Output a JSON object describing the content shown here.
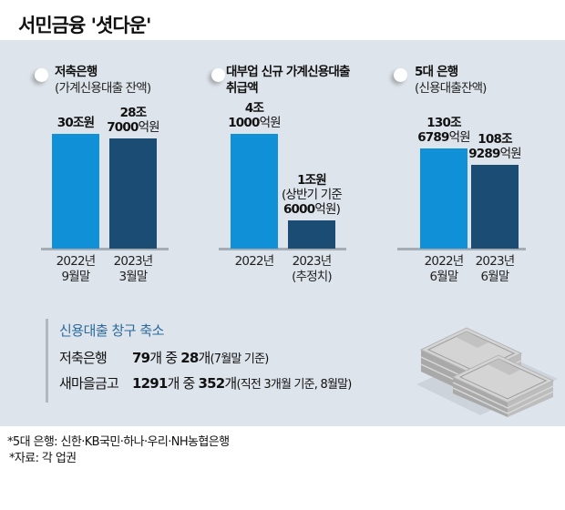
{
  "header": {
    "title": "서민금융 '셧다운'"
  },
  "colors": {
    "bar_2022": "#1090d6",
    "bar_2023": "#1a4c74",
    "panel": "#dee4eb",
    "box_title": "#2a6a9e"
  },
  "chart_data": [
    {
      "type": "bar",
      "title": "저축은행",
      "subtitle": "(가계신용대출 잔액)",
      "categories": [
        "2022년 9월말",
        "2023년 3월말"
      ],
      "category_lines": [
        [
          "2022년",
          "9월말"
        ],
        [
          "2023년",
          "3월말"
        ]
      ],
      "values": [
        300000,
        287000
      ],
      "unit": "억원",
      "data_labels": [
        [
          "30조원"
        ],
        [
          "28조",
          "7000억원"
        ]
      ]
    },
    {
      "type": "bar",
      "title": "대부업 신규 가계신용대출 취급액",
      "title_lines": [
        "대부업 신규 가계신용대출",
        "취급액"
      ],
      "subtitle": "",
      "categories": [
        "2022년",
        "2023년 (추정치)"
      ],
      "category_lines": [
        [
          "2022년"
        ],
        [
          "2023년",
          "(추정치)"
        ]
      ],
      "values": [
        41000,
        10000
      ],
      "unit": "억원",
      "data_labels": [
        [
          "4조",
          "1000억원"
        ],
        [
          "1조원",
          "(상반기 기준",
          "6000억원)"
        ]
      ]
    },
    {
      "type": "bar",
      "title": "5대 은행",
      "subtitle": "(신용대출잔액)",
      "categories": [
        "2022년 6월말",
        "2023년 6월말"
      ],
      "category_lines": [
        [
          "2022년",
          "6월말"
        ],
        [
          "2023년",
          "6월말"
        ]
      ],
      "values": [
        1306789,
        1089289
      ],
      "unit": "억원",
      "data_labels": [
        [
          "130조",
          "6789억원"
        ],
        [
          "108조",
          "9289억원"
        ]
      ]
    }
  ],
  "box": {
    "title": "신용대출 창구 축소",
    "rows": [
      {
        "name": "저축은행",
        "total": "79",
        "total_unit": "개 중 ",
        "count": "28",
        "count_unit": "개",
        "note": "(7월말 기준)"
      },
      {
        "name": "새마을금고",
        "total": "1291",
        "total_unit": "개 중 ",
        "count": "352",
        "count_unit": "개",
        "note": "(직전 3개월 기준, 8월말)"
      }
    ]
  },
  "illustration": {
    "icon": "money-stack-icon"
  },
  "footnotes": [
    "*5대 은행: 신한·KB국민·하나·우리·NH농협은행",
    "*자료: 각 업권"
  ]
}
